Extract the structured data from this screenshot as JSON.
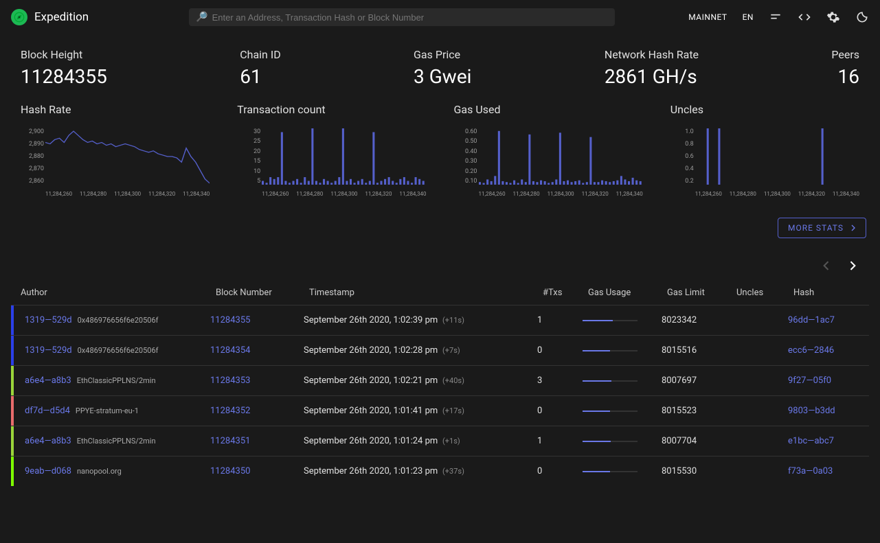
{
  "header": {
    "app_name": "Expedition",
    "search_placeholder": "Enter an Address, Transaction Hash or Block Number",
    "network_label": "MAINNET",
    "lang_label": "EN",
    "logo_color": "#1db954"
  },
  "stats": {
    "block_height": {
      "label": "Block Height",
      "value": "11284355"
    },
    "chain_id": {
      "label": "Chain ID",
      "value": "61"
    },
    "gas_price": {
      "label": "Gas Price",
      "value": "3 Gwei"
    },
    "hash_rate": {
      "label": "Network Hash Rate",
      "value": "2861 GH/s"
    },
    "peers": {
      "label": "Peers",
      "value": "16"
    }
  },
  "charts": {
    "x_ticks": [
      "11,284,260",
      "11,284,280",
      "11,284,300",
      "11,284,320",
      "11,284,340"
    ],
    "line_color": "#5560cc",
    "bar_color": "#5560cc",
    "hash_rate": {
      "title": "Hash Rate",
      "type": "line",
      "y_ticks": [
        "2,900",
        "2,890",
        "2,880",
        "2,870",
        "2,860"
      ],
      "ylim": [
        2860,
        2900
      ],
      "values": [
        2890,
        2889,
        2892,
        2893,
        2890,
        2895,
        2898,
        2895,
        2892,
        2890,
        2891,
        2889,
        2890,
        2888,
        2889,
        2887,
        2888,
        2889,
        2888,
        2887,
        2885,
        2884,
        2883,
        2884,
        2882,
        2881,
        2880,
        2880,
        2879,
        2876,
        2886,
        2880,
        2876,
        2870,
        2864,
        2861
      ]
    },
    "tx_count": {
      "title": "Transaction count",
      "type": "bar",
      "y_ticks": [
        "30",
        "25",
        "20",
        "15",
        "10",
        "5"
      ],
      "ylim": [
        0,
        30
      ],
      "values": [
        2,
        1,
        4,
        3,
        4,
        28,
        2,
        1,
        2,
        3,
        1,
        4,
        2,
        30,
        2,
        1,
        3,
        2,
        1,
        2,
        4,
        30,
        2,
        3,
        1,
        2,
        3,
        1,
        2,
        28,
        1,
        2,
        3,
        4,
        2,
        1,
        3,
        4,
        2,
        1,
        4,
        3,
        2
      ]
    },
    "gas_used": {
      "title": "Gas Used",
      "type": "bar",
      "y_ticks": [
        "0.60",
        "0.50",
        "0.40",
        "0.30",
        "0.20",
        "0.10"
      ],
      "ylim": [
        0,
        0.65
      ],
      "values": [
        0.03,
        0.02,
        0.06,
        0.04,
        0.1,
        0.62,
        0.04,
        0.03,
        0.02,
        0.05,
        0.02,
        0.06,
        0.03,
        0.58,
        0.04,
        0.03,
        0.05,
        0.04,
        0.02,
        0.03,
        0.06,
        0.6,
        0.04,
        0.05,
        0.03,
        0.04,
        0.05,
        0.02,
        0.03,
        0.55,
        0.03,
        0.03,
        0.05,
        0.04,
        0.03,
        0.04,
        0.05,
        0.1,
        0.06,
        0.04,
        0.08,
        0.05,
        0.04
      ]
    },
    "uncles": {
      "title": "Uncles",
      "type": "bar",
      "y_ticks": [
        "1.0",
        "0.8",
        "0.6",
        "0.4",
        "0.2"
      ],
      "ylim": [
        0,
        1.0
      ],
      "values": [
        0,
        0,
        0,
        1,
        0,
        0,
        1,
        0,
        0,
        0,
        0,
        0,
        0,
        0,
        0,
        0,
        0,
        0,
        0,
        0,
        0,
        0,
        0,
        0,
        0,
        0,
        0,
        0,
        0,
        0,
        0,
        0,
        0,
        1,
        0,
        0,
        0,
        0,
        0,
        0,
        0,
        0,
        0
      ]
    }
  },
  "more_stats_button": "MORE STATS",
  "table": {
    "columns": {
      "author": "Author",
      "block": "Block Number",
      "timestamp": "Timestamp",
      "txs": "#Txs",
      "gas_usage": "Gas Usage",
      "gas_limit": "Gas Limit",
      "uncles": "Uncles",
      "hash": "Hash"
    },
    "rows": [
      {
        "stripe": "#2b3fe8",
        "author_short": "1319—529d",
        "author_alias": "0x486976656f6e20506f",
        "block": "11284355",
        "timestamp": "September 26th 2020, 1:02:39 pm",
        "rel": "(+11s)",
        "txs": "1",
        "gas_usage": 0.55,
        "gas_limit": "8023342",
        "uncles": "",
        "hash": "96dd—1ac7"
      },
      {
        "stripe": "#2b3fe8",
        "author_short": "1319—529d",
        "author_alias": "0x486976656f6e20506f",
        "block": "11284354",
        "timestamp": "September 26th 2020, 1:02:28 pm",
        "rel": "(+7s)",
        "txs": "0",
        "gas_usage": 0.5,
        "gas_limit": "8015516",
        "uncles": "",
        "hash": "ecc6—2846"
      },
      {
        "stripe": "#9bd53a",
        "author_short": "a6e4—a8b3",
        "author_alias": "EthClassicPPLNS/2min",
        "block": "11284353",
        "timestamp": "September 26th 2020, 1:02:21 pm",
        "rel": "(+40s)",
        "txs": "3",
        "gas_usage": 0.53,
        "gas_limit": "8007697",
        "uncles": "",
        "hash": "9f27—05f0"
      },
      {
        "stripe": "#e86c6c",
        "author_short": "df7d—d5d4",
        "author_alias": "PPYE-stratum-eu-1",
        "block": "11284352",
        "timestamp": "September 26th 2020, 1:01:41 pm",
        "rel": "(+17s)",
        "txs": "0",
        "gas_usage": 0.5,
        "gas_limit": "8015523",
        "uncles": "",
        "hash": "9803—b3dd"
      },
      {
        "stripe": "#9bd53a",
        "author_short": "a6e4—a8b3",
        "author_alias": "EthClassicPPLNS/2min",
        "block": "11284351",
        "timestamp": "September 26th 2020, 1:01:24 pm",
        "rel": "(+1s)",
        "txs": "1",
        "gas_usage": 0.51,
        "gas_limit": "8007704",
        "uncles": "",
        "hash": "e1bc—abc7"
      },
      {
        "stripe": "#7fff00",
        "author_short": "9eab—d068",
        "author_alias": "nanopool.org",
        "block": "11284350",
        "timestamp": "September 26th 2020, 1:01:23 pm",
        "rel": "(+37s)",
        "txs": "0",
        "gas_usage": 0.5,
        "gas_limit": "8015530",
        "uncles": "",
        "hash": "f73a—0a03"
      }
    ]
  }
}
